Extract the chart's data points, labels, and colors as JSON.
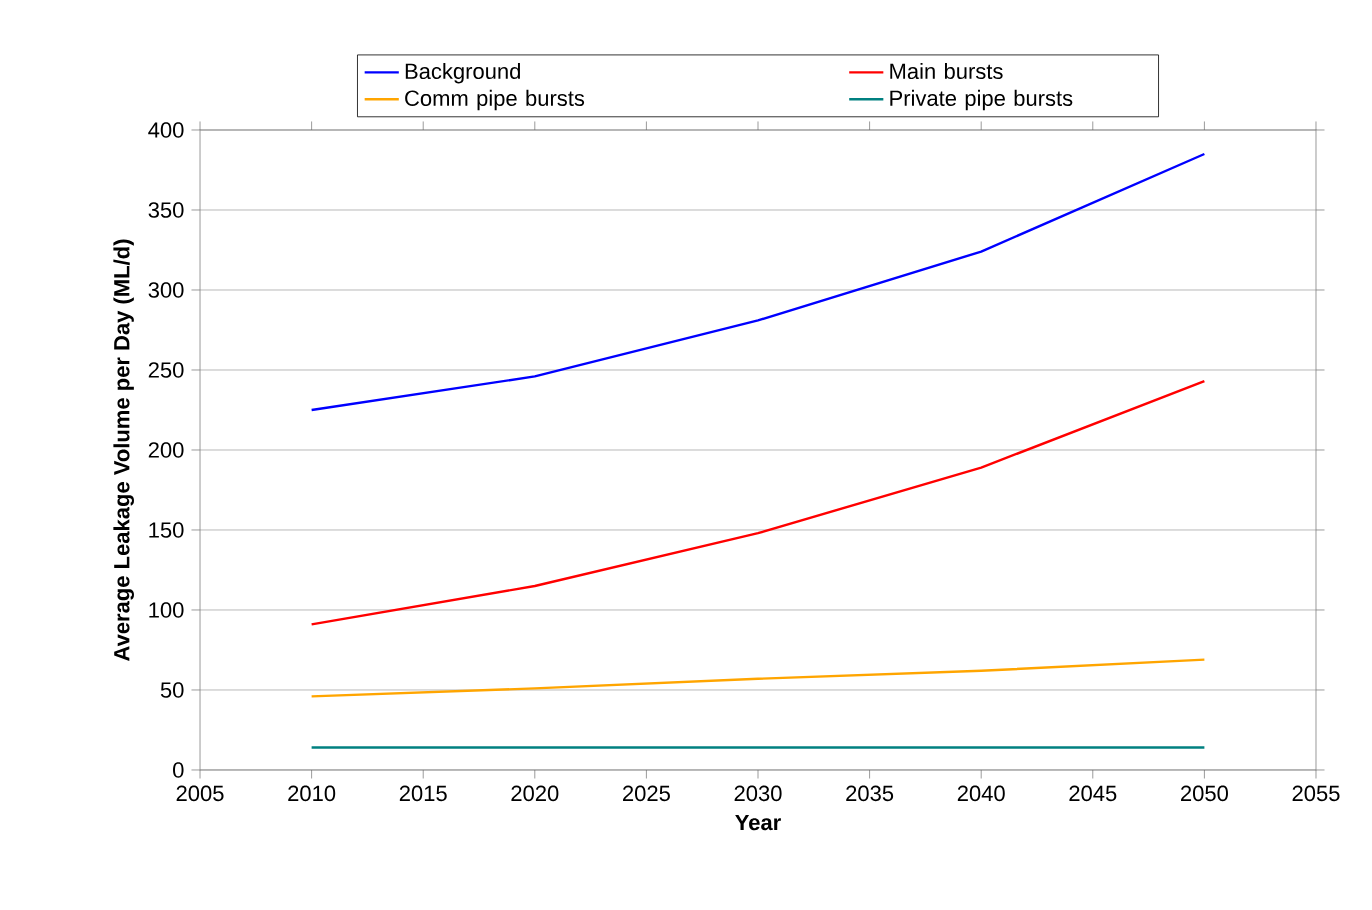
{
  "chart_data": {
    "type": "line",
    "xlabel": "Year",
    "ylabel": "Average Leakage Volume per Day (ML/d)",
    "x": [
      2010,
      2020,
      2030,
      2040,
      2050
    ],
    "series": [
      {
        "name": "Background",
        "color": "#0000ff",
        "values": [
          225,
          246,
          281,
          324,
          385
        ]
      },
      {
        "name": "Main bursts",
        "color": "#ff0000",
        "values": [
          91,
          115,
          148,
          189,
          243
        ]
      },
      {
        "name": "Comm pipe bursts",
        "color": "#ffa500",
        "values": [
          46,
          51,
          57,
          62,
          69
        ]
      },
      {
        "name": "Private pipe bursts",
        "color": "#008080",
        "values": [
          14,
          14,
          14,
          14,
          14
        ]
      }
    ],
    "xlim": [
      2005,
      2055
    ],
    "xticks": [
      2005,
      2010,
      2015,
      2020,
      2025,
      2030,
      2035,
      2040,
      2045,
      2050,
      2055
    ],
    "ylim": [
      0,
      400
    ],
    "yticks": [
      0,
      50,
      100,
      150,
      200,
      250,
      300,
      350,
      400
    ],
    "grid": "y",
    "legend": "top",
    "marker": "none",
    "line_style": "solid"
  }
}
